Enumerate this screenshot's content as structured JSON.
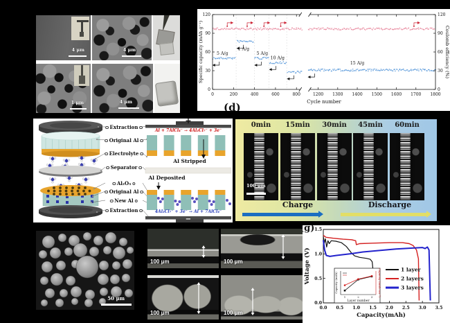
{
  "figure": {
    "panel_d_label": "(d)",
    "panel_g_label": "(g)"
  },
  "sem_grid": {
    "panels": [
      {
        "scale_bar": "4 μm"
      },
      {
        "scale_bar": "4 μm"
      },
      {
        "scale_bar": "1 μm"
      },
      {
        "scale_bar": "4 μm"
      }
    ]
  },
  "schematic": {
    "labels": [
      "Extraction",
      "Original Al",
      "Electrolyte",
      "Separator",
      "Al₂O₃",
      "Original Al",
      "New Al",
      "Extraction"
    ],
    "plus": "+",
    "minus": "−",
    "eq_strip": "Al + 7AlCl₄⁻ → 4Al₂Cl₇⁻ + 3e⁻",
    "eq_deposit": "4Al₂Cl₇⁻ + 3e⁻ → Al + 7AlCl₄⁻",
    "al_stripped": "Al Stripped",
    "al_deposited": "Al Deposited",
    "colors": {
      "pillar_teal": "#8fbfb7",
      "alumina_orange": "#e8a42c",
      "ion_purple": "#5a52c0",
      "electrode_gray": "#4a4a4a"
    }
  },
  "timelapse": {
    "times": [
      "0min",
      "15min",
      "30min",
      "45min",
      "60min"
    ],
    "scale_bar": "100 μm",
    "charge_label": "Charge",
    "discharge_label": "Discharge",
    "charge_arrow_color": "#1b6ec2",
    "discharge_arrow_color": "#e2de66"
  },
  "particles_sem": {
    "scale_bar": "50 μm"
  },
  "cross_sections": {
    "scale_bar": "100 μm"
  },
  "chart_data": [
    {
      "name": "rate-cycling",
      "type": "scatter",
      "xlabel": "Cycle number",
      "ylabel_left": "Specific capacity (mAh g⁻¹)",
      "ylabel_right": "Coulomb efficiency (%)",
      "ylim": [
        0,
        120
      ],
      "yticks": [
        0,
        30,
        60,
        90,
        120
      ],
      "xticks_before_break": [
        0,
        200,
        400,
        600,
        800
      ],
      "xticks_after_break": [
        1200,
        1300,
        1400,
        1500,
        1600,
        1700,
        1800
      ],
      "axis_break": [
        850,
        1150
      ],
      "capacity_color": "#4f93d8",
      "efficiency_color": "#e8849a",
      "capacity_segments": [
        {
          "rate": "5 A/g",
          "from": 5,
          "to": 215,
          "capacity": 50
        },
        {
          "rate": "1 A/g",
          "from": 235,
          "to": 390,
          "capacity": 77
        },
        {
          "rate": "5 A/g",
          "from": 405,
          "to": 530,
          "capacity": 50
        },
        {
          "rate": "10 A/g",
          "from": 545,
          "to": 700,
          "capacity": 43
        },
        {
          "rate": "15 A/g",
          "from": 715,
          "to": 850,
          "capacity": 28
        },
        {
          "rate": "15 A/g",
          "from": 1150,
          "to": 1800,
          "capacity": 31
        }
      ],
      "coulomb_efficiency": 97
    },
    {
      "name": "discharge-curves",
      "type": "line",
      "xlabel": "Capacity(mAh)",
      "ylabel": "Voltage (V)",
      "xlim": [
        0,
        3.5
      ],
      "ylim": [
        0,
        1.5
      ],
      "xticks": [
        0.0,
        0.5,
        1.0,
        1.5,
        2.0,
        2.5,
        3.0,
        3.5
      ],
      "yticks": [
        0.0,
        0.5,
        1.0,
        1.5
      ],
      "legend_position": "center-right",
      "series": [
        {
          "name": "1 layer",
          "color": "#111111",
          "points": [
            [
              0,
              1.36
            ],
            [
              0.03,
              1.22
            ],
            [
              0.06,
              1.31
            ],
            [
              0.1,
              1.14
            ],
            [
              0.14,
              1.27
            ],
            [
              0.18,
              1.21
            ],
            [
              0.24,
              1.27
            ],
            [
              0.38,
              1.26
            ],
            [
              0.55,
              1.23
            ],
            [
              0.7,
              1.15
            ],
            [
              0.85,
              1.02
            ],
            [
              0.95,
              0.96
            ],
            [
              1.1,
              0.93
            ],
            [
              1.3,
              0.91
            ],
            [
              1.42,
              0.89
            ],
            [
              1.48,
              0.84
            ],
            [
              1.5,
              0.7
            ]
          ]
        },
        {
          "name": "2 layers",
          "color": "#d42020",
          "points": [
            [
              0,
              1.38
            ],
            [
              0.08,
              1.34
            ],
            [
              0.3,
              1.32
            ],
            [
              0.6,
              1.3
            ],
            [
              0.85,
              1.29
            ],
            [
              0.98,
              1.27
            ],
            [
              1.0,
              1.19
            ],
            [
              1.1,
              1.21
            ],
            [
              1.5,
              1.22
            ],
            [
              2.0,
              1.23
            ],
            [
              2.4,
              1.23
            ],
            [
              2.6,
              1.21
            ],
            [
              2.72,
              1.17
            ],
            [
              2.82,
              1.08
            ],
            [
              2.88,
              0.9
            ],
            [
              2.9,
              0.05
            ]
          ]
        },
        {
          "name": "3 layers",
          "color": "#2222cc",
          "points": [
            [
              0,
              1.28
            ],
            [
              0.04,
              1.08
            ],
            [
              0.09,
              0.97
            ],
            [
              0.2,
              0.95
            ],
            [
              0.4,
              0.97
            ],
            [
              0.8,
              1.0
            ],
            [
              1.2,
              1.04
            ],
            [
              1.7,
              1.07
            ],
            [
              2.2,
              1.1
            ],
            [
              2.7,
              1.12
            ],
            [
              3.0,
              1.13
            ],
            [
              3.08,
              1.11
            ],
            [
              3.15,
              1.14
            ],
            [
              3.2,
              1.08
            ],
            [
              3.24,
              0.05
            ]
          ]
        }
      ],
      "legend": [
        "1 layer",
        "2 layers",
        "3 layers"
      ],
      "inset": {
        "type": "line",
        "xlabel": "Layer number",
        "ylabel_left": "Capacity (mAh)",
        "ylabel_right": "Capacity (mAh cm⁻²)",
        "x": [
          1,
          2,
          3
        ],
        "series": [
          {
            "name": "capacity-black",
            "color": "#111111",
            "marker": "square",
            "values": [
              1.3,
              2.55,
              2.9
            ]
          },
          {
            "name": "capacity-red",
            "color": "#d42020",
            "marker": "circle",
            "values": [
              1.9,
              2.6,
              2.95
            ]
          }
        ]
      }
    }
  ]
}
